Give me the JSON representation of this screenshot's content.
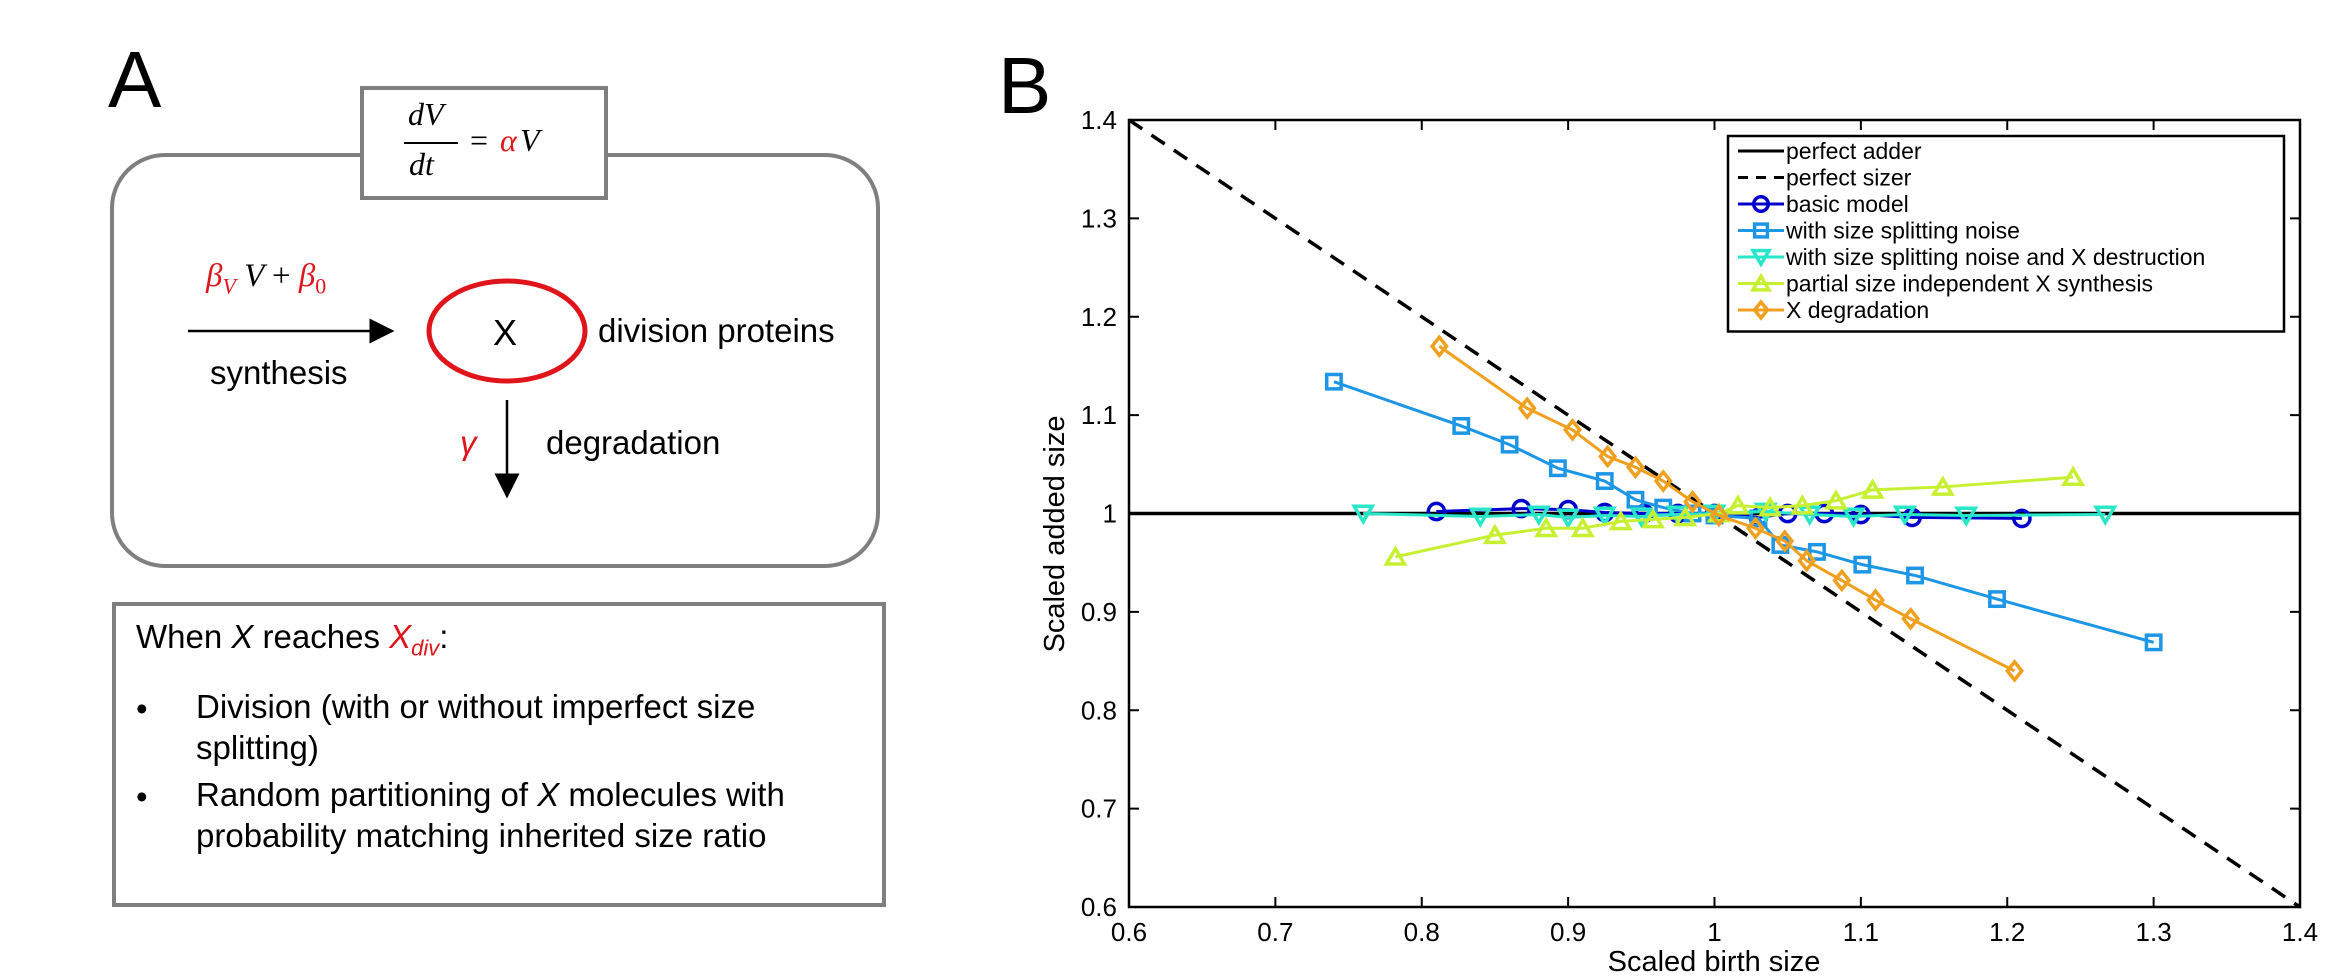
{
  "panelA": {
    "letter": "A",
    "growth_eq": {
      "num": "dV",
      "den": "dt",
      "rhs_coef": "α",
      "rhs_var": "V"
    },
    "synthesis_rate": {
      "b1": "β",
      "b1_sub": "V",
      "v": "V",
      "plus": "+",
      "b0": "β",
      "b0_sub": "0"
    },
    "synthesis_label": "synthesis",
    "molecule_label": "X",
    "division_proteins_label": "division proteins",
    "degradation_symbol": "γ",
    "degradation_label": "degradation",
    "rule": {
      "lead": "When ",
      "x": "X",
      "mid": " reaches ",
      "xdiv": "X",
      "xdiv_sub": "div",
      "colon": ":",
      "items": [
        {
          "line1": "Division (with or without imperfect size",
          "line2": "splitting)"
        },
        {
          "l1a": "Random partitioning of ",
          "l1x": "X",
          "l1b": " molecules with",
          "line2": "probability matching inherited size ratio"
        }
      ]
    }
  },
  "panelB": {
    "letter": "B"
  },
  "chart_data": {
    "type": "line",
    "xlabel": "Scaled birth size",
    "ylabel": "Scaled added size",
    "xlim": [
      0.6,
      1.4
    ],
    "ylim": [
      0.6,
      1.4
    ],
    "xticks": [
      0.6,
      0.7,
      0.8,
      0.9,
      1,
      1.1,
      1.2,
      1.3,
      1.4
    ],
    "yticks": [
      0.6,
      0.7,
      0.8,
      0.9,
      1,
      1.1,
      1.2,
      1.3,
      1.4
    ],
    "grid": false,
    "legend_position": "top-right",
    "series": [
      {
        "name": "perfect adder",
        "color": "#000000",
        "style": "solid",
        "marker": "none",
        "x": [
          0.6,
          1.4
        ],
        "y": [
          1,
          1
        ]
      },
      {
        "name": "perfect sizer",
        "color": "#000000",
        "style": "dashed",
        "marker": "none",
        "x": [
          0.6,
          1.4
        ],
        "y": [
          1.4,
          0.6
        ]
      },
      {
        "name": "basic model",
        "color": "#0000cc",
        "style": "solid",
        "marker": "circle",
        "x": [
          0.81,
          0.868,
          0.9,
          0.925,
          0.952,
          0.975,
          1.0,
          1.03,
          1.05,
          1.075,
          1.1,
          1.135,
          1.21
        ],
        "y": [
          1.002,
          1.005,
          1.004,
          1.001,
          1.0,
          1.0,
          1.0,
          0.996,
          1.0,
          1.0,
          0.999,
          0.996,
          0.995
        ]
      },
      {
        "name": "with size splitting noise",
        "color": "#1e96e6",
        "style": "solid",
        "marker": "square",
        "x": [
          0.74,
          0.827,
          0.86,
          0.893,
          0.925,
          0.946,
          0.965,
          0.985,
          1.0,
          1.03,
          1.045,
          1.07,
          1.101,
          1.137,
          1.193,
          1.3
        ],
        "y": [
          1.134,
          1.089,
          1.07,
          1.046,
          1.033,
          1.014,
          1.006,
          1.0,
          0.998,
          0.995,
          0.968,
          0.961,
          0.948,
          0.937,
          0.913,
          0.869
        ]
      },
      {
        "name": "with size splitting noise and X destruction",
        "color": "#28e6c8",
        "style": "solid",
        "marker": "triangle-down",
        "x": [
          0.76,
          0.84,
          0.88,
          0.9,
          0.925,
          0.95,
          0.975,
          1.0,
          1.035,
          1.065,
          1.095,
          1.13,
          1.172,
          1.267
        ],
        "y": [
          1.0,
          0.997,
          0.999,
          0.996,
          0.998,
          0.997,
          0.999,
          1.0,
          1.002,
          0.999,
          0.997,
          0.999,
          0.998,
          0.999
        ]
      },
      {
        "name": "partial size independent X synthesis",
        "color": "#c8f032",
        "style": "solid",
        "marker": "triangle-up",
        "x": [
          0.782,
          0.85,
          0.885,
          0.91,
          0.936,
          0.958,
          0.98,
          1.003,
          1.016,
          1.038,
          1.06,
          1.083,
          1.108,
          1.156,
          1.245
        ],
        "y": [
          0.956,
          0.978,
          0.985,
          0.985,
          0.992,
          0.994,
          0.996,
          1.0,
          1.008,
          1.006,
          1.008,
          1.013,
          1.024,
          1.027,
          1.037
        ]
      },
      {
        "name": "X degradation",
        "color": "#f0a01e",
        "style": "solid",
        "marker": "diamond",
        "x": [
          0.812,
          0.872,
          0.903,
          0.927,
          0.946,
          0.965,
          0.985,
          1.003,
          1.028,
          1.048,
          1.063,
          1.087,
          1.11,
          1.134,
          1.205
        ],
        "y": [
          1.17,
          1.107,
          1.085,
          1.058,
          1.047,
          1.033,
          1.012,
          0.998,
          0.985,
          0.972,
          0.952,
          0.932,
          0.912,
          0.893,
          0.84
        ]
      }
    ]
  }
}
